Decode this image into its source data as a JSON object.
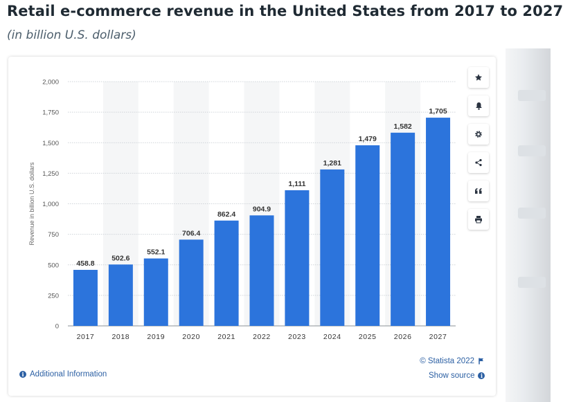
{
  "header": {
    "title": "Retail e-commerce revenue in the United States from 2017 to 2027",
    "subtitle": "(in billion U.S. dollars)"
  },
  "toolbar": {
    "buttons": [
      {
        "name": "favorite-button",
        "icon": "star-icon"
      },
      {
        "name": "notification-button",
        "icon": "bell-icon"
      },
      {
        "name": "settings-button",
        "icon": "gear-icon"
      },
      {
        "name": "share-button",
        "icon": "share-icon"
      },
      {
        "name": "cite-button",
        "icon": "quote-icon"
      },
      {
        "name": "print-button",
        "icon": "printer-icon"
      }
    ]
  },
  "footer": {
    "additional_info": "Additional Information",
    "copyright": "© Statista 2022",
    "show_source": "Show source"
  },
  "colors": {
    "bar": "#2c74dc",
    "accent_link": "#2b5fa3",
    "band": "#f5f6f7"
  },
  "chart_data": {
    "type": "bar",
    "title": "",
    "xlabel": "",
    "ylabel": "Revenue in billion U.S. dollars",
    "categories": [
      "2017",
      "2018",
      "2019",
      "2020",
      "2021",
      "2022",
      "2023",
      "2024",
      "2025",
      "2026",
      "2027"
    ],
    "values": [
      458.8,
      502.6,
      552.1,
      706.4,
      862.4,
      904.9,
      1111,
      1281,
      1479,
      1582,
      1705
    ],
    "value_labels": [
      "458.8",
      "502.6",
      "552.1",
      "706.4",
      "862.4",
      "904.9",
      "1,111",
      "1,281",
      "1,479",
      "1,582",
      "1,705"
    ],
    "ylim": [
      0,
      2000
    ],
    "yticks": [
      0,
      250,
      500,
      750,
      1000,
      1250,
      1500,
      1750,
      2000
    ],
    "ytick_labels": [
      "0",
      "250",
      "500",
      "750",
      "1,000",
      "1,250",
      "1,500",
      "1,750",
      "2,000"
    ],
    "grid": true,
    "legend": "none"
  }
}
